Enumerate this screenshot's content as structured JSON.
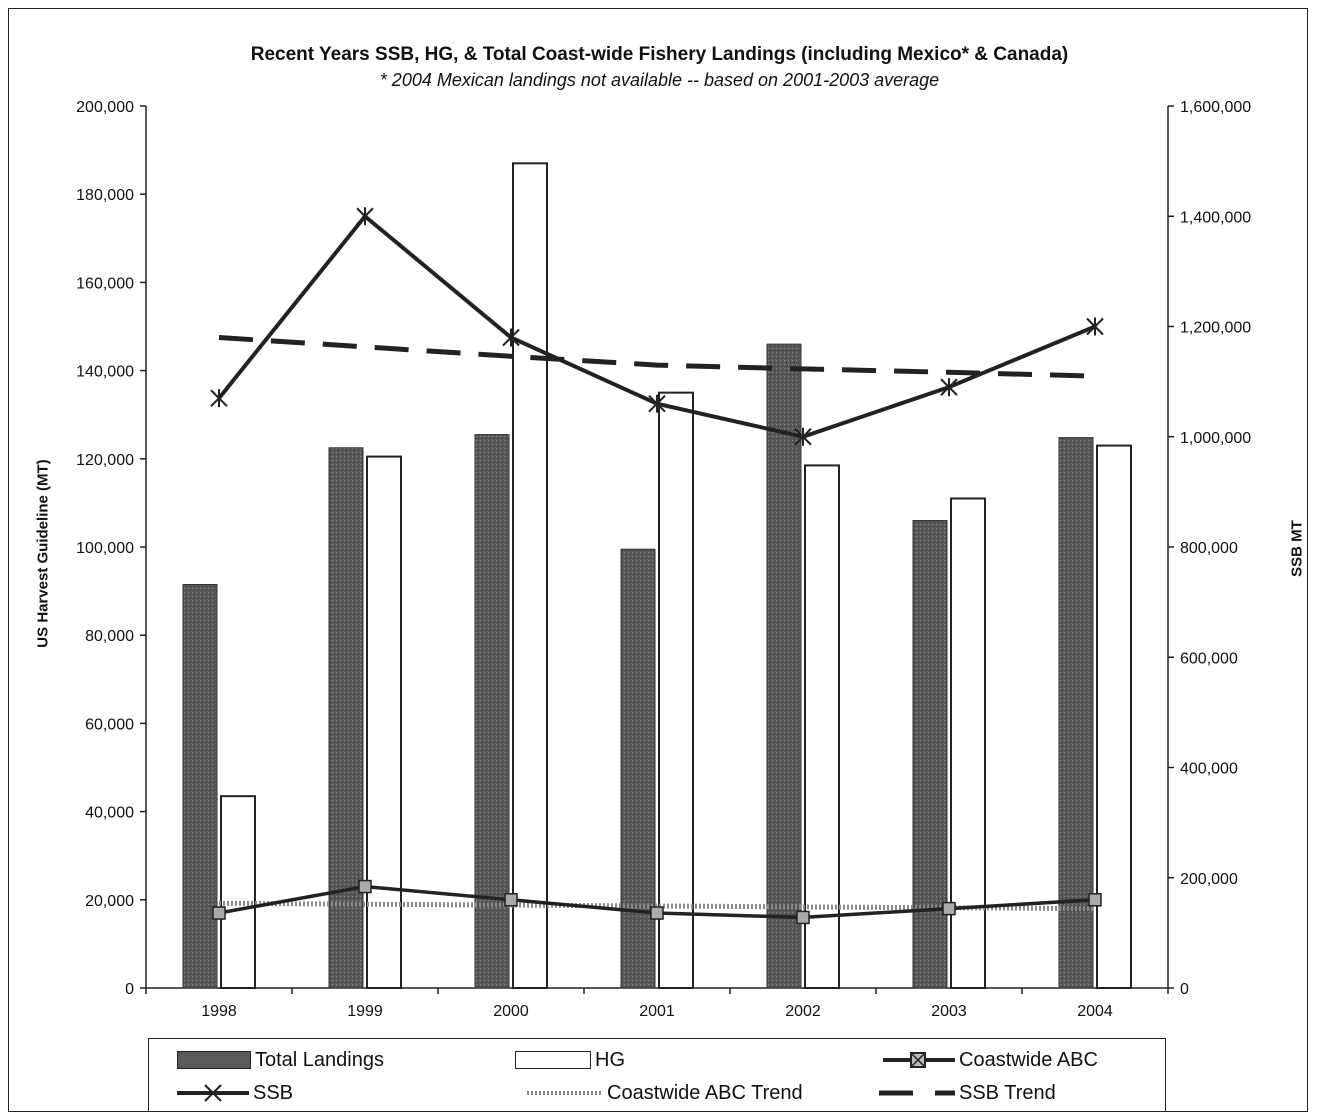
{
  "chart_data": {
    "type": "bar",
    "title": "Recent Years SSB, HG,  & Total Coast-wide Fishery Landings (including Mexico* & Canada)",
    "subtitle": "* 2004 Mexican landings not available -- based on 2001-2003 average",
    "categories": [
      "1998",
      "1999",
      "2000",
      "2001",
      "2002",
      "2003",
      "2004"
    ],
    "ylabel": "US Harvest Guideline (MT)",
    "y2label": "SSB MT",
    "ylim": [
      0,
      200000
    ],
    "y2lim": [
      0,
      1600000
    ],
    "yticks": [
      "0",
      "20,000",
      "40,000",
      "60,000",
      "80,000",
      "100,000",
      "120,000",
      "140,000",
      "160,000",
      "180,000",
      "200,000"
    ],
    "y2ticks": [
      "0",
      "200,000",
      "400,000",
      "600,000",
      "800,000",
      "1,000,000",
      "1,200,000",
      "1,400,000",
      "1,600,000"
    ],
    "grid": false,
    "legend_position": "bottom",
    "series": [
      {
        "name": "Total Landings",
        "type": "bar",
        "axis": "left",
        "color": "#5a5a5a",
        "values": [
          91500,
          122500,
          125500,
          99500,
          146000,
          106000,
          124800
        ]
      },
      {
        "name": "HG",
        "type": "bar",
        "axis": "left",
        "color": "#ffffff",
        "values": [
          43500,
          120500,
          187000,
          135000,
          118500,
          111000,
          123000
        ]
      },
      {
        "name": "Coastwide ABC",
        "type": "line",
        "axis": "left",
        "color": "#222222",
        "values": [
          17000,
          23000,
          20000,
          17000,
          16000,
          18000,
          20000
        ]
      },
      {
        "name": "SSB",
        "type": "line",
        "axis": "right",
        "color": "#222222",
        "values": [
          1070000,
          1400000,
          1180000,
          1060000,
          1000000,
          1090000,
          1200000
        ]
      },
      {
        "name": "Coastwide ABC Trend",
        "type": "line",
        "axis": "left",
        "color": "#888888",
        "values": [
          19200,
          19000,
          18800,
          18600,
          18400,
          18200,
          18000
        ]
      },
      {
        "name": "SSB Trend",
        "type": "line",
        "axis": "right",
        "color": "#222222",
        "values": [
          1180000,
          1163000,
          1146000,
          1130000,
          1123000,
          1117000,
          1110000
        ]
      }
    ]
  },
  "legend": {
    "total_landings": "Total Landings",
    "hg": "HG",
    "coastwide_abc": "Coastwide ABC",
    "ssb": "SSB",
    "abc_trend": "Coastwide ABC Trend",
    "ssb_trend": "SSB Trend"
  }
}
